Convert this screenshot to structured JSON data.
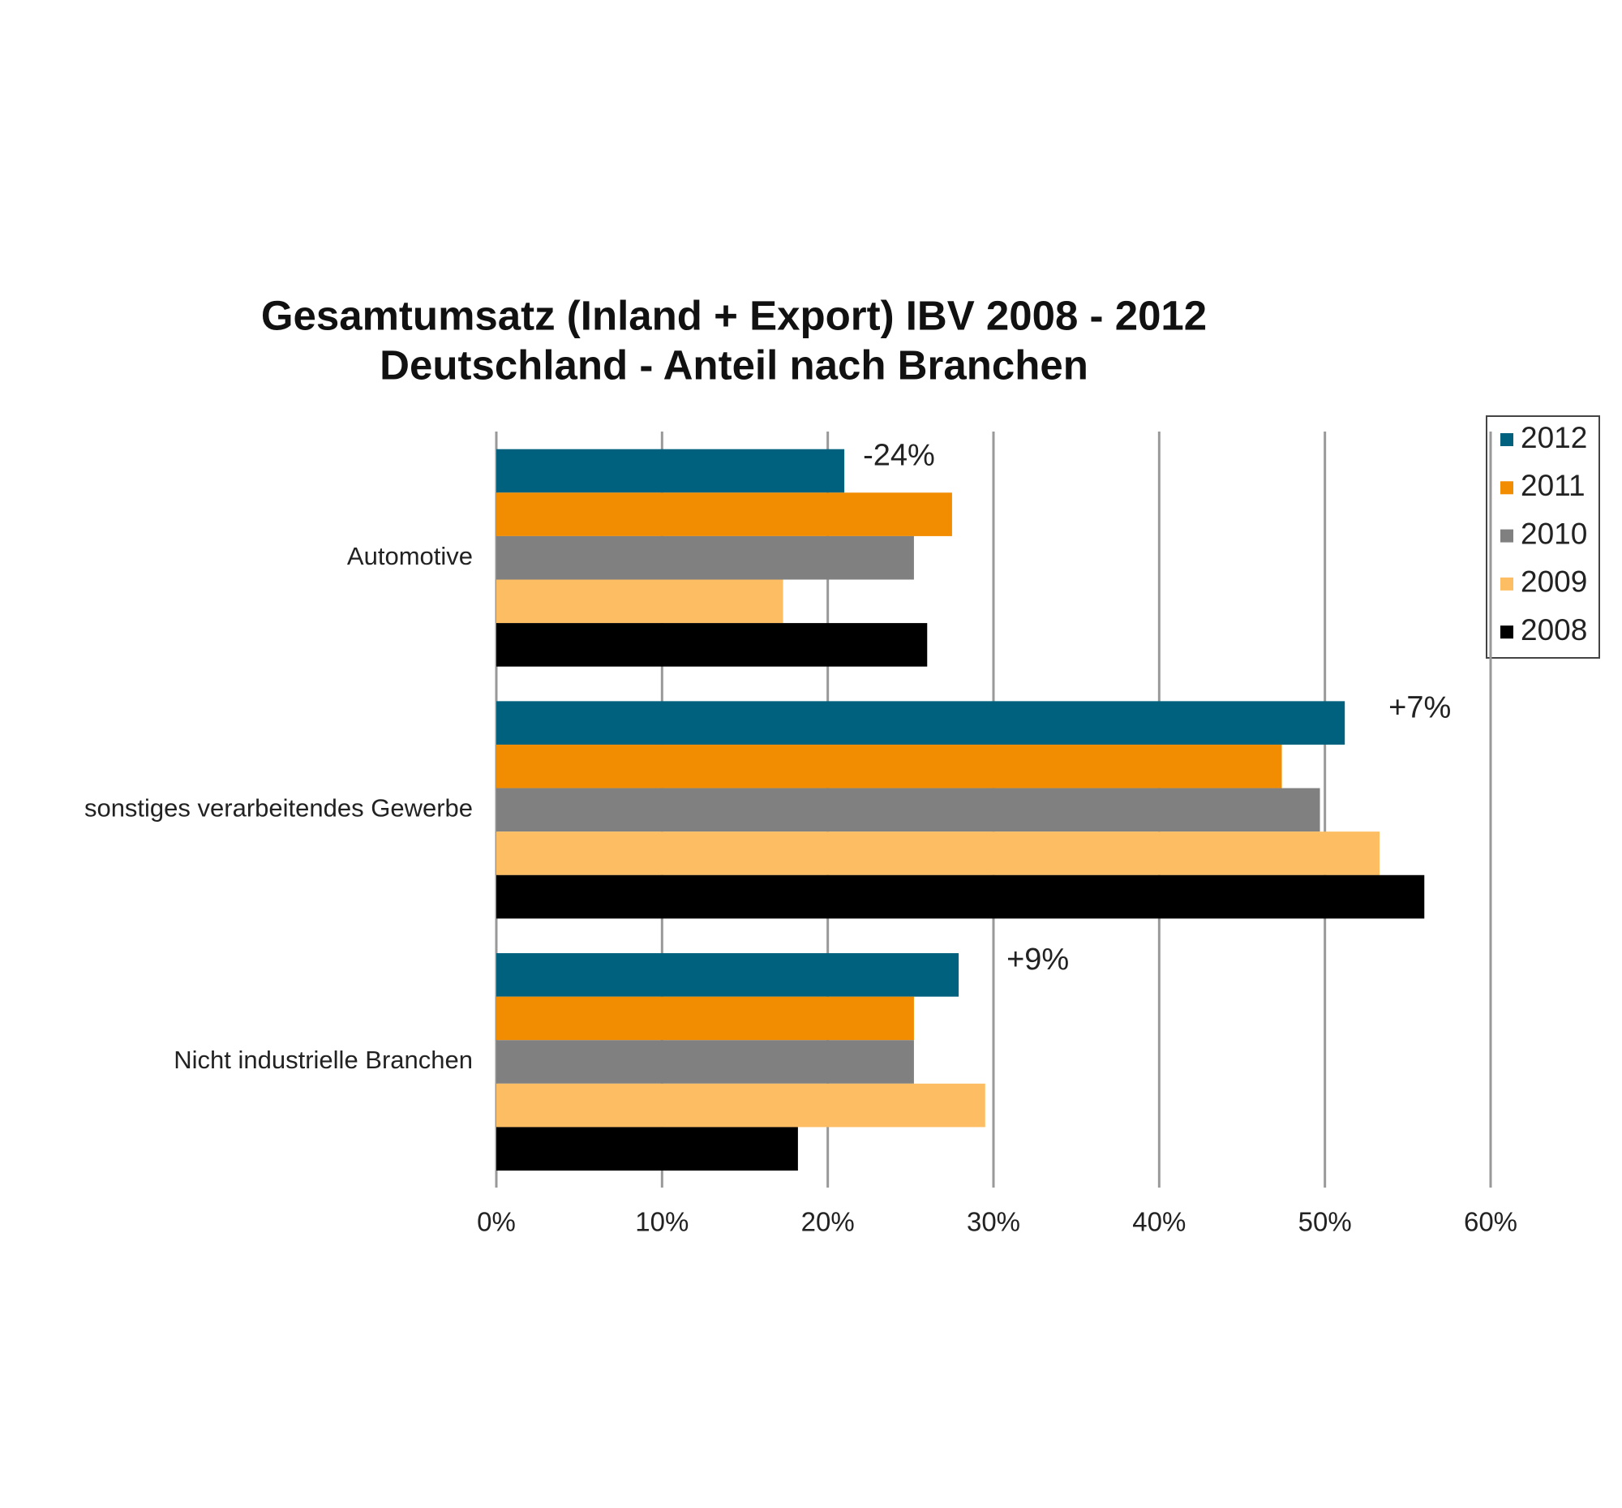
{
  "chart_data": {
    "type": "hbar",
    "title": "Gesamtumsatz (Inland + Export) IBV 2008 - 2012",
    "subtitle": "Deutschland - Anteil nach Branchen",
    "categories": [
      "Automotive",
      "sonstiges verarbeitendes Gewerbe",
      "Nicht industrielle Branchen"
    ],
    "series": [
      {
        "name": "2012",
        "color": "#00617f",
        "values": [
          21.0,
          51.2,
          27.9
        ]
      },
      {
        "name": "2011",
        "color": "#f28c00",
        "values": [
          27.5,
          47.4,
          25.2
        ]
      },
      {
        "name": "2010",
        "color": "#808080",
        "values": [
          25.2,
          49.7,
          25.2
        ]
      },
      {
        "name": "2009",
        "color": "#fdbe63",
        "values": [
          17.3,
          53.3,
          29.5
        ]
      },
      {
        "name": "2008",
        "color": "#000000",
        "values": [
          26.0,
          56.0,
          18.2
        ]
      }
    ],
    "annotations": [
      "-24%",
      "+7%",
      "+9%"
    ],
    "xlim": [
      0,
      60
    ],
    "xticks": [
      {
        "value": 0,
        "label": "0%"
      },
      {
        "value": 10,
        "label": "10%"
      },
      {
        "value": 20,
        "label": "20%"
      },
      {
        "value": 30,
        "label": "30%"
      },
      {
        "value": 40,
        "label": "40%"
      },
      {
        "value": 50,
        "label": "50%"
      },
      {
        "value": 60,
        "label": "60%"
      }
    ],
    "grid": true,
    "legend": "right"
  }
}
